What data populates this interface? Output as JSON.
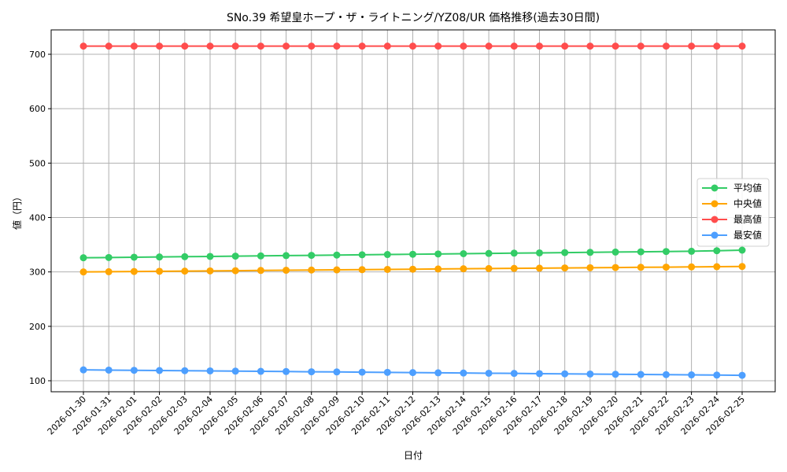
{
  "chart_data": {
    "type": "line",
    "title": "SNo.39 希望皇ホープ・ザ・ライトニング/YZ08/UR 価格推移(過去30日間)",
    "xlabel": "日付",
    "ylabel": "値（円）",
    "ylim": [
      80,
      745
    ],
    "yticks": [
      100,
      200,
      300,
      400,
      500,
      600,
      700
    ],
    "grid": true,
    "legend_position": "center right",
    "x": [
      "2026-01-30",
      "2026-01-31",
      "2026-02-01",
      "2026-02-02",
      "2026-02-03",
      "2026-02-04",
      "2026-02-05",
      "2026-02-06",
      "2026-02-07",
      "2026-02-08",
      "2026-02-09",
      "2026-02-10",
      "2026-02-11",
      "2026-02-12",
      "2026-02-13",
      "2026-02-14",
      "2026-02-15",
      "2026-02-16",
      "2026-02-17",
      "2026-02-18",
      "2026-02-19",
      "2026-02-20",
      "2026-02-21",
      "2026-02-22",
      "2026-02-23",
      "2026-02-24",
      "2026-02-25"
    ],
    "series": [
      {
        "name": "平均値",
        "color": "#33cc66",
        "values": [
          326,
          326.5,
          327,
          327.5,
          328,
          328.5,
          329,
          329.5,
          330,
          330.5,
          331,
          331.5,
          332,
          332.5,
          333,
          333.5,
          334,
          334.5,
          335,
          335.5,
          336,
          336.5,
          337,
          337.5,
          338,
          339,
          340
        ]
      },
      {
        "name": "中央値",
        "color": "#ffa500",
        "values": [
          300,
          300.4,
          300.8,
          301.2,
          301.5,
          301.9,
          302.3,
          302.7,
          303.1,
          303.5,
          303.8,
          304.2,
          304.6,
          305,
          305.4,
          305.8,
          306.2,
          306.5,
          306.9,
          307.3,
          307.7,
          308.1,
          308.5,
          308.8,
          309.2,
          309.6,
          310
        ]
      },
      {
        "name": "最高値",
        "color": "#ff4d4d",
        "values": [
          715,
          715,
          715,
          715,
          715,
          715,
          715,
          715,
          715,
          715,
          715,
          715,
          715,
          715,
          715,
          715,
          715,
          715,
          715,
          715,
          715,
          715,
          715,
          715,
          715,
          715,
          715
        ]
      },
      {
        "name": "最安値",
        "color": "#4d9fff",
        "values": [
          120,
          119.6,
          119.2,
          118.8,
          118.5,
          118.1,
          117.7,
          117.3,
          116.9,
          116.5,
          116.2,
          115.8,
          115.4,
          115,
          114.6,
          114.2,
          113.8,
          113.5,
          113.1,
          112.7,
          112.3,
          111.9,
          111.5,
          111.2,
          110.8,
          110.4,
          110
        ]
      }
    ]
  }
}
